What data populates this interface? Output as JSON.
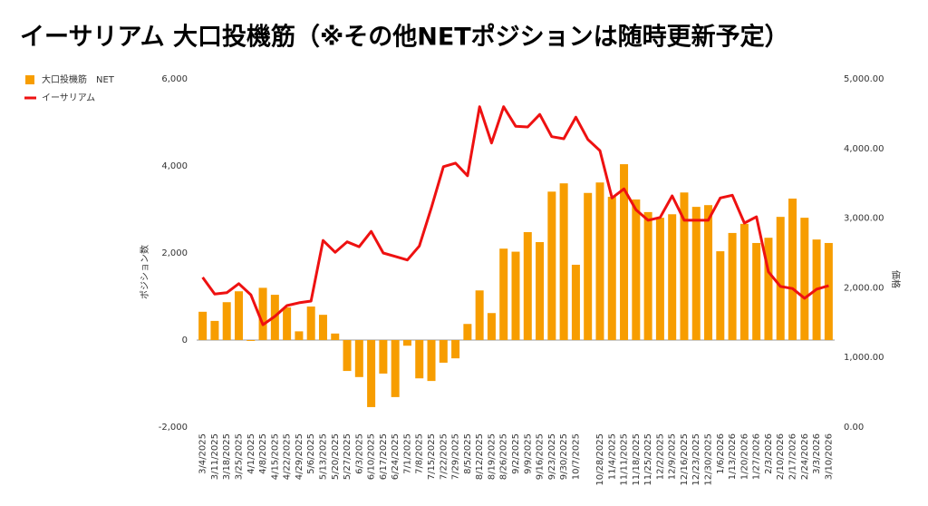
{
  "chart_data": {
    "type": "bar",
    "title": "イーサリアム 大口投機筋（※その他NETポジションは随時更新予定）",
    "ylabel": "ポジション数",
    "y2label": "価格",
    "categories": [
      "3/4/2025",
      "3/11/2025",
      "3/18/2025",
      "3/25/2025",
      "4/1/2025",
      "4/8/2025",
      "4/15/2025",
      "4/22/2025",
      "4/29/2025",
      "5/6/2025",
      "5/13/2025",
      "5/20/2025",
      "5/27/2025",
      "6/3/2025",
      "6/10/2025",
      "6/17/2025",
      "6/24/2025",
      "7/1/2025",
      "7/8/2025",
      "7/15/2025",
      "7/22/2025",
      "7/29/2025",
      "8/5/2025",
      "8/12/2025",
      "8/19/2025",
      "8/26/2025",
      "9/2/2025",
      "9/9/2025",
      "9/16/2025",
      "9/23/2025",
      "9/30/2025",
      "10/7/2025",
      null,
      "10/28/2025",
      "11/4/2025",
      "11/11/2025",
      "11/18/2025",
      "11/25/2025",
      "12/2/2025",
      "12/9/2025",
      "12/16/2025",
      "12/23/2025",
      "12/30/2025",
      "1/6/2026",
      "1/13/2026",
      "1/20/2026",
      "1/27/2026",
      "2/3/2026",
      "2/10/2026",
      "2/17/2026",
      "2/24/2026",
      "3/3/2026",
      "3/10/2026"
    ],
    "series": [
      {
        "name": "大口投機筋　NET",
        "type": "bar",
        "color": "#f79d00",
        "values": [
          650,
          440,
          870,
          1120,
          -20,
          1200,
          1040,
          750,
          200,
          770,
          580,
          150,
          -710,
          -850,
          -1540,
          -770,
          -1310,
          -130,
          -880,
          -940,
          -520,
          -420,
          370,
          1140,
          620,
          2100,
          2030,
          2480,
          2250,
          3410,
          3600,
          1730,
          3380,
          3620,
          3290,
          4040,
          3230,
          2940,
          2810,
          2890,
          3390,
          3060,
          3100,
          2040,
          2460,
          2670,
          2230,
          2350,
          2830,
          3250,
          2810,
          2310,
          2230
        ]
      },
      {
        "name": "イーサリアム",
        "type": "line",
        "axis": "y2",
        "color": "#ee1111",
        "values": [
          2150,
          1910,
          1930,
          2060,
          1900,
          1470,
          1590,
          1745,
          1785,
          1810,
          2680,
          2510,
          2660,
          2590,
          2810,
          2500,
          2450,
          2400,
          2600,
          3150,
          3740,
          3790,
          3610,
          4600,
          4080,
          4600,
          4320,
          4310,
          4490,
          4170,
          4140,
          4450,
          4130,
          3970,
          3290,
          3420,
          3120,
          2970,
          3010,
          3320,
          2970,
          2970,
          2970,
          3290,
          3330,
          2930,
          3020,
          2230,
          2020,
          1990,
          1850,
          1980,
          2030
        ]
      }
    ],
    "ylim": [
      -2000,
      6000
    ],
    "yticks": [
      {
        "value": -2000,
        "label": "-2,000"
      },
      0,
      {
        "value": 2000,
        "label": "2,000"
      },
      {
        "value": 4000,
        "label": "4,000"
      },
      {
        "value": 6000,
        "label": "6,000"
      }
    ],
    "y2lim": [
      0,
      5000
    ],
    "y2ticks": [
      {
        "value": 0,
        "label": "0.00"
      },
      {
        "value": 1000,
        "label": "1,000.00"
      },
      {
        "value": 2000,
        "label": "2,000.00"
      },
      {
        "value": 3000,
        "label": "3,000.00"
      },
      {
        "value": 4000,
        "label": "4,000.00"
      },
      {
        "value": 5000,
        "label": "5,000.00"
      }
    ],
    "legend": "top-left"
  }
}
